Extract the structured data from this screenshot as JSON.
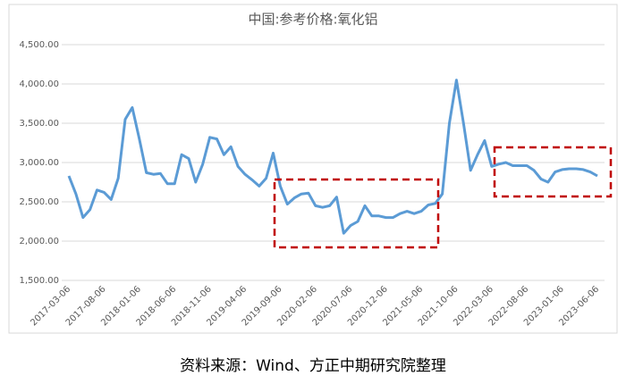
{
  "chart_data": {
    "type": "line",
    "title": "中国:参考价格:氧化铝",
    "source": "资料来源：Wind、方正中期研究院整理",
    "categories": [
      "2017-03-06",
      null,
      null,
      null,
      null,
      "2017-08-06",
      null,
      null,
      null,
      null,
      "2018-01-06",
      null,
      null,
      null,
      null,
      "2018-06-06",
      null,
      null,
      null,
      null,
      "2018-11-06",
      null,
      null,
      null,
      null,
      "2019-04-06",
      null,
      null,
      null,
      null,
      "2019-09-06",
      null,
      null,
      null,
      null,
      "2020-02-06",
      null,
      null,
      null,
      null,
      "2020-07-06",
      null,
      null,
      null,
      null,
      "2020-12-06",
      null,
      null,
      null,
      null,
      "2021-05-06",
      null,
      null,
      null,
      null,
      "2021-10-06",
      null,
      null,
      null,
      null,
      "2022-03-06",
      null,
      null,
      null,
      null,
      "2022-08-06",
      null,
      null,
      null,
      null,
      "2023-01-06",
      null,
      null,
      null,
      null,
      "2023-06-06"
    ],
    "series": [
      {
        "name": "中国:参考价格:氧化铝",
        "color": "#5b9bd5",
        "values": [
          2830,
          2600,
          2300,
          2400,
          2650,
          2620,
          2530,
          2800,
          3550,
          3700,
          3300,
          2870,
          2850,
          2860,
          2730,
          2730,
          3100,
          3050,
          2750,
          2980,
          3320,
          3300,
          3100,
          3200,
          2950,
          2850,
          2780,
          2700,
          2800,
          3120,
          2700,
          2470,
          2550,
          2600,
          2610,
          2450,
          2430,
          2450,
          2560,
          2100,
          2200,
          2250,
          2450,
          2320,
          2320,
          2300,
          2300,
          2350,
          2380,
          2350,
          2380,
          2460,
          2480,
          2600,
          3500,
          4050,
          3500,
          2900,
          3100,
          3280,
          2950,
          2980,
          3000,
          2960,
          2960,
          2960,
          2900,
          2790,
          2750,
          2880,
          2910,
          2920,
          2920,
          2910,
          2880,
          2830
        ]
      }
    ],
    "ylim": [
      1500,
      4500
    ],
    "yticks": [
      {
        "value": 1500,
        "label": "1,500.00"
      },
      {
        "value": 2000,
        "label": "2,000.00"
      },
      {
        "value": 2500,
        "label": "2,500.00"
      },
      {
        "value": 3000,
        "label": "3,000.00"
      },
      {
        "value": 3500,
        "label": "3,500.00"
      },
      {
        "value": 4000,
        "label": "4,000.00"
      },
      {
        "value": 4500,
        "label": "4,500.00"
      }
    ],
    "grid": true
  }
}
